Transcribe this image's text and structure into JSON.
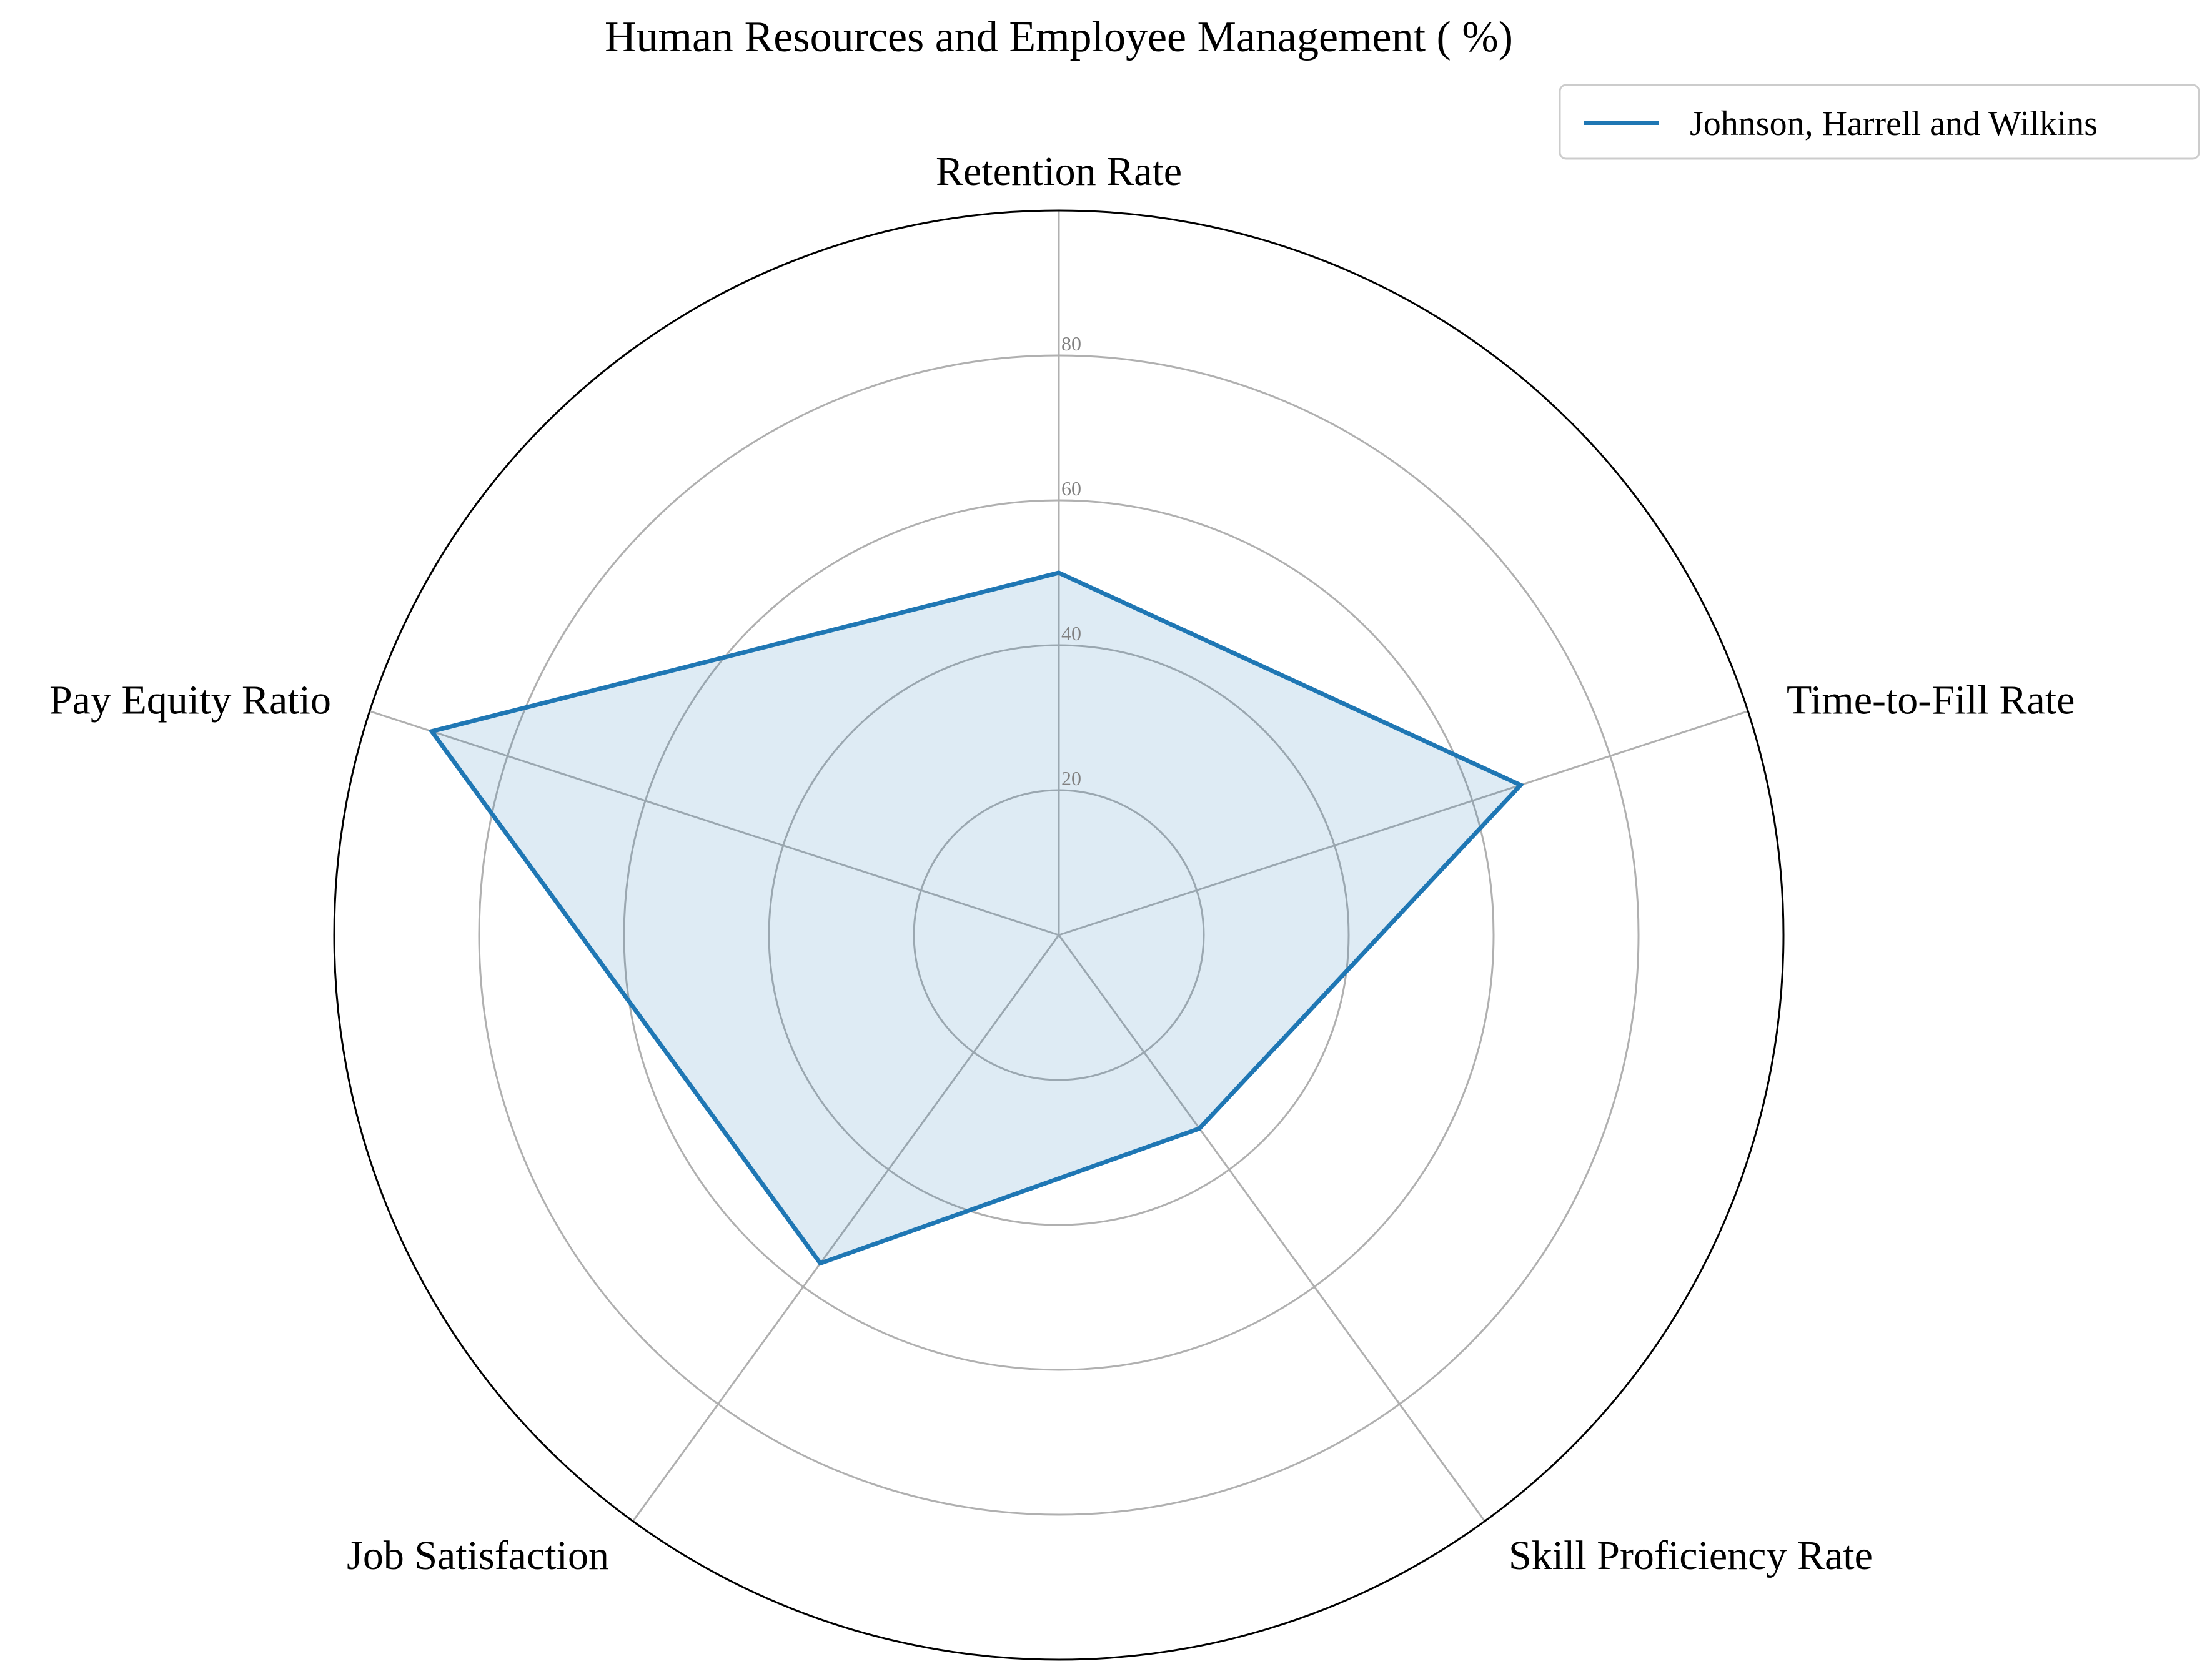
{
  "chart_data": {
    "type": "radar",
    "title": "Human Resources and Employee Management ( %)",
    "axes": [
      "Retention Rate",
      "Time-to-Fill Rate",
      "Skill Proficiency Rate",
      "Job Satisfaction",
      "Pay Equity Ratio"
    ],
    "rlim": [
      0,
      100
    ],
    "radial_ticks": [
      20,
      40,
      60,
      80
    ],
    "grid": true,
    "legend_position": "top-right",
    "series": [
      {
        "name": "Johnson, Harrell and Wilkins",
        "values": [
          50,
          67,
          33,
          56,
          91
        ],
        "color": "#1f77b4"
      }
    ]
  }
}
